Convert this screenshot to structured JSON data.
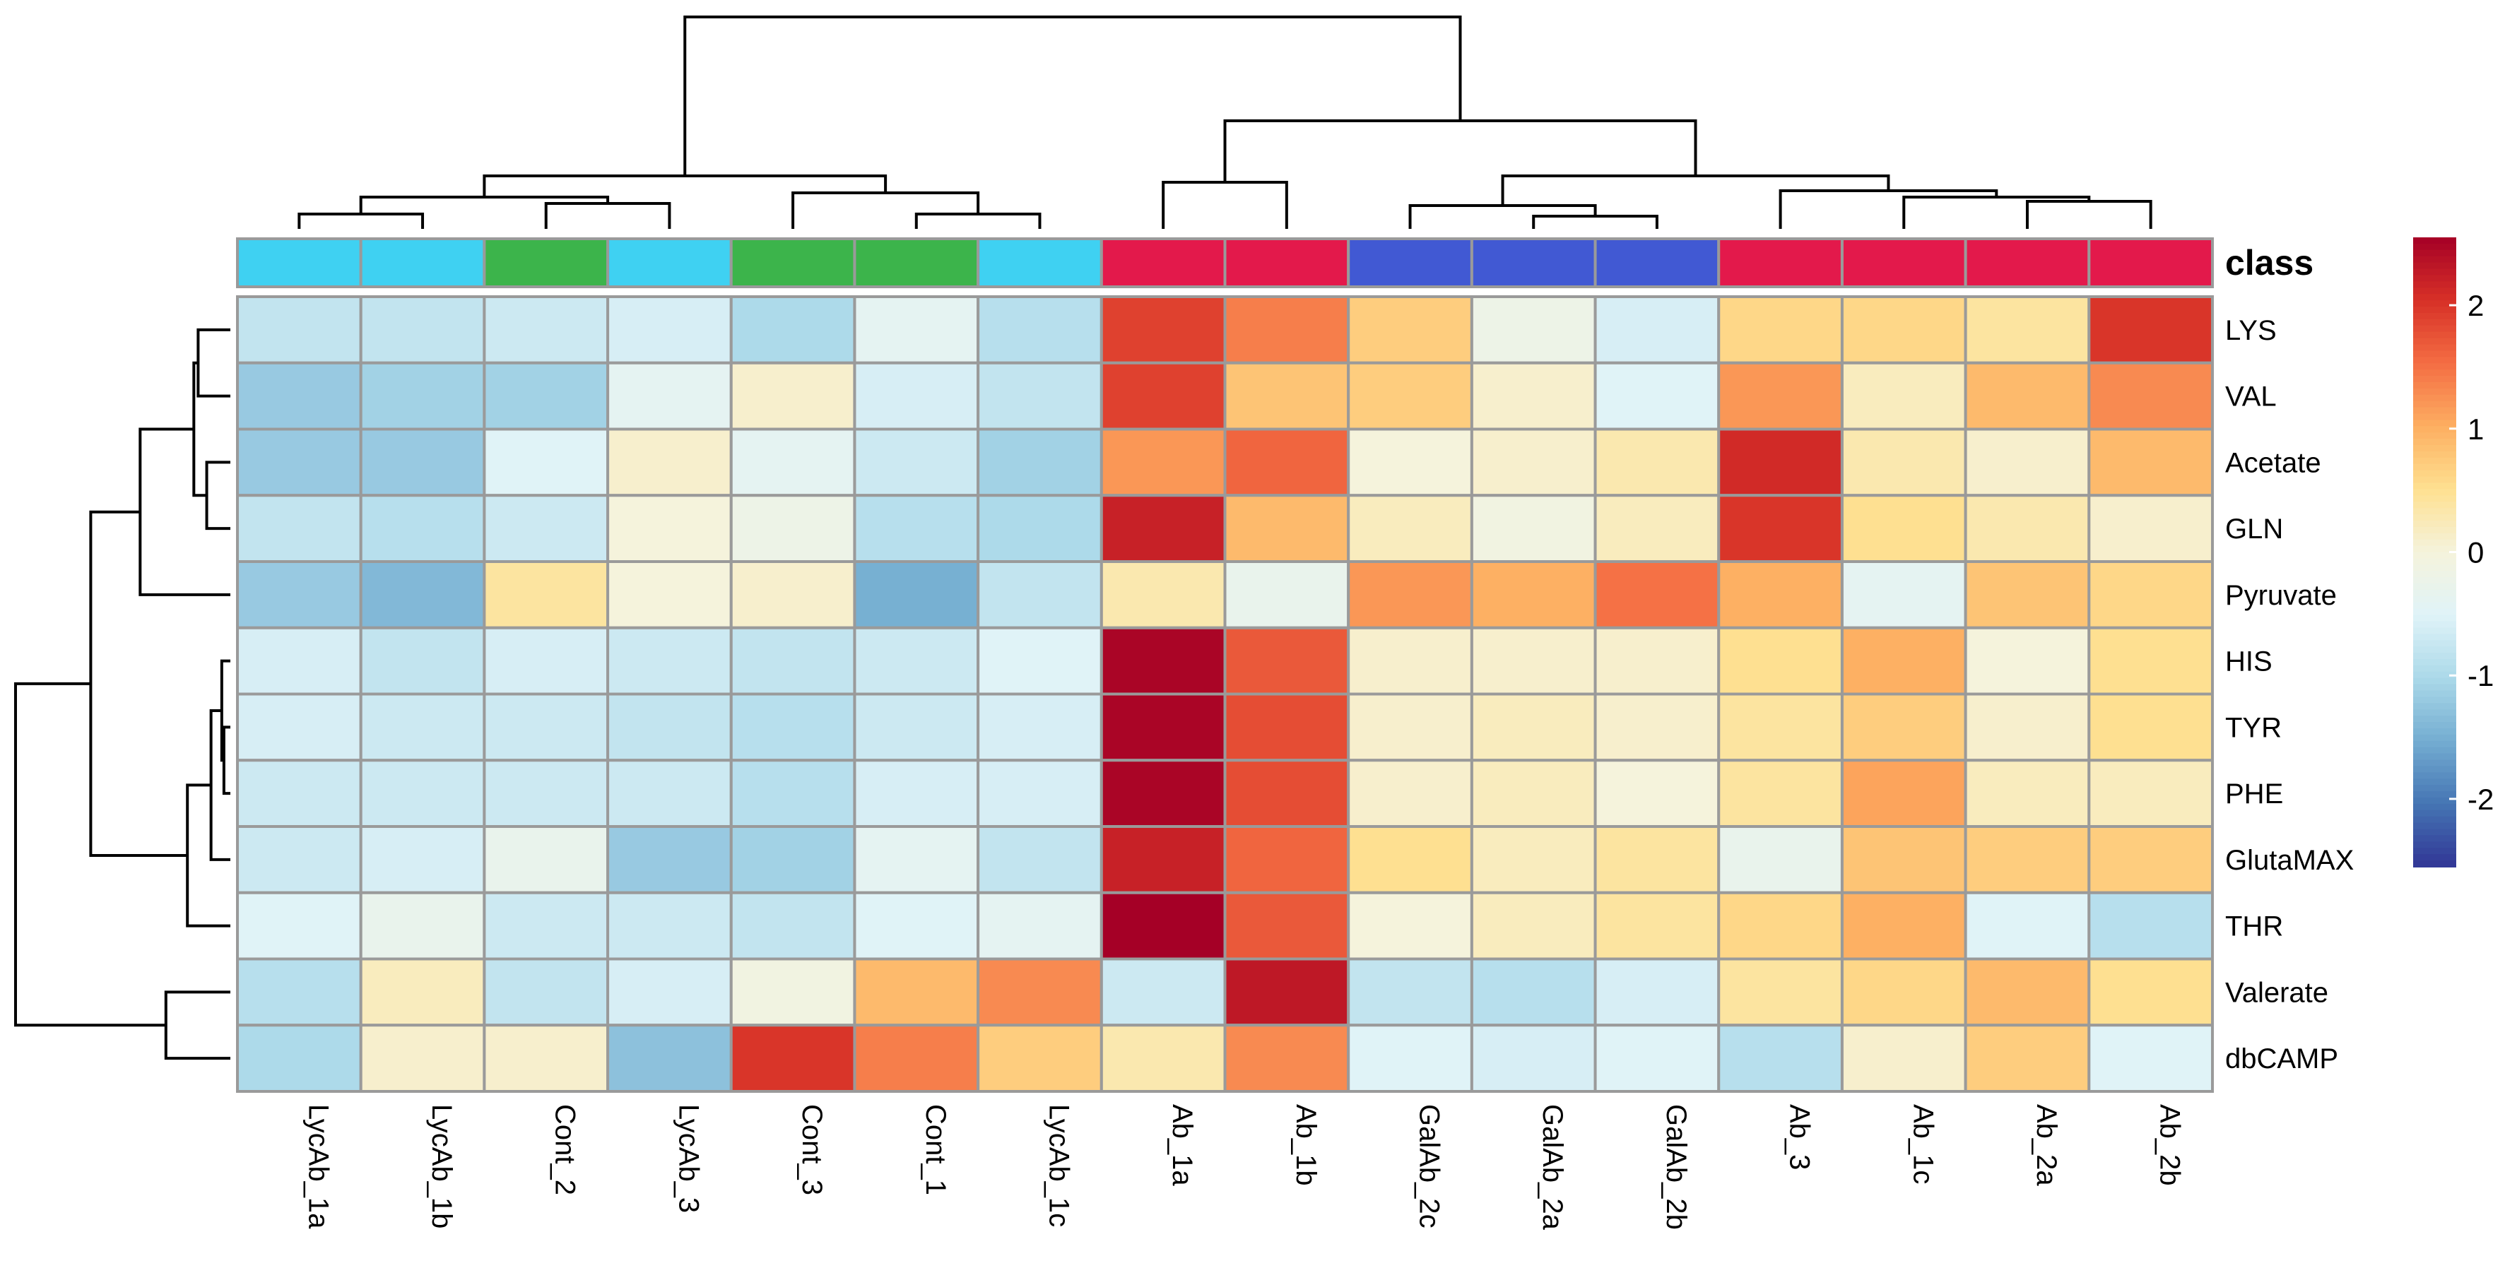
{
  "chart_data": {
    "type": "heatmap",
    "title": "",
    "columns": [
      "LycAb_1a",
      "LycAb_1b",
      "Cont_2",
      "LycAb_3",
      "Cont_3",
      "Cont_1",
      "LycAb_1c",
      "Ab_1a",
      "Ab_1b",
      "GalAb_2c",
      "GalAb_2a",
      "GalAb_2b",
      "Ab_3",
      "Ab_1c",
      "Ab_2a",
      "Ab_2b"
    ],
    "rows": [
      "LYS",
      "VAL",
      "Acetate",
      "GLN",
      "Pyruvate",
      "HIS",
      "TYR",
      "PHE",
      "GlutaMAX",
      "THR",
      "Valerate",
      "dbCAMP"
    ],
    "values": [
      [
        -0.8,
        -0.8,
        -0.7,
        -0.6,
        -1.0,
        -0.4,
        -0.9,
        1.9,
        1.4,
        0.7,
        -0.2,
        -0.6,
        0.6,
        0.6,
        0.4,
        2.0
      ],
      [
        -1.2,
        -1.1,
        -1.1,
        -0.4,
        0.1,
        -0.6,
        -0.8,
        1.9,
        0.8,
        0.7,
        0.1,
        -0.5,
        1.2,
        0.2,
        0.9,
        1.3
      ],
      [
        -1.2,
        -1.2,
        -0.5,
        0.1,
        -0.4,
        -0.7,
        -1.1,
        1.2,
        1.6,
        0.0,
        0.1,
        0.3,
        2.1,
        0.3,
        0.1,
        0.9
      ],
      [
        -0.8,
        -0.9,
        -0.7,
        0.0,
        -0.2,
        -0.9,
        -1.0,
        2.2,
        0.9,
        0.2,
        -0.1,
        0.2,
        2.0,
        0.5,
        0.3,
        0.1
      ],
      [
        -1.2,
        -1.4,
        0.4,
        0.0,
        0.1,
        -1.5,
        -0.8,
        0.3,
        -0.3,
        1.2,
        1.0,
        1.5,
        1.0,
        -0.4,
        0.8,
        0.6
      ],
      [
        -0.6,
        -0.8,
        -0.6,
        -0.7,
        -0.8,
        -0.7,
        -0.5,
        2.5,
        1.7,
        0.1,
        0.1,
        0.1,
        0.5,
        1.0,
        0.0,
        0.5
      ],
      [
        -0.6,
        -0.7,
        -0.7,
        -0.8,
        -0.9,
        -0.7,
        -0.6,
        2.5,
        1.8,
        0.1,
        0.2,
        0.1,
        0.4,
        0.7,
        0.1,
        0.5
      ],
      [
        -0.7,
        -0.7,
        -0.7,
        -0.7,
        -0.9,
        -0.6,
        -0.6,
        2.5,
        1.8,
        0.1,
        0.2,
        0.0,
        0.4,
        1.1,
        0.2,
        0.2
      ],
      [
        -0.7,
        -0.6,
        -0.3,
        -1.2,
        -1.1,
        -0.4,
        -0.8,
        2.2,
        1.6,
        0.5,
        0.2,
        0.4,
        -0.3,
        0.8,
        0.7,
        0.7
      ],
      [
        -0.5,
        -0.3,
        -0.7,
        -0.7,
        -0.8,
        -0.5,
        -0.4,
        2.6,
        1.7,
        0.0,
        0.2,
        0.4,
        0.6,
        1.0,
        -0.5,
        -0.9
      ],
      [
        -0.9,
        0.2,
        -0.8,
        -0.6,
        -0.1,
        0.9,
        1.3,
        -0.7,
        2.3,
        -0.8,
        -0.9,
        -0.6,
        0.4,
        0.6,
        0.9,
        0.5
      ],
      [
        -1.0,
        0.1,
        0.1,
        -1.3,
        2.0,
        1.4,
        0.7,
        0.3,
        1.3,
        -0.5,
        -0.6,
        -0.5,
        -0.9,
        0.1,
        0.7,
        -0.5
      ]
    ],
    "annotation": {
      "label": "class",
      "values": [
        "Lyc",
        "Lyc",
        "Cont",
        "Lyc",
        "Cont",
        "Cont",
        "Lyc",
        "Ab",
        "Ab",
        "GalAb",
        "GalAb",
        "GalAb",
        "Ab",
        "Ab",
        "Ab",
        "Ab"
      ],
      "colors": {
        "Lyc": "#3fd1f2",
        "Cont": "#3cb44b",
        "Ab": "#e3194b",
        "GalAb": "#4159d3"
      }
    },
    "col_dendrogram": [
      [
        0,
        1,
        0.7
      ],
      [
        2,
        3,
        1.2
      ],
      [
        16,
        17,
        1.5
      ],
      [
        5,
        6,
        0.7
      ],
      [
        4,
        19,
        1.7
      ],
      [
        18,
        20,
        2.5
      ],
      [
        7,
        8,
        2.2
      ],
      [
        10,
        11,
        0.6
      ],
      [
        9,
        23,
        1.1
      ],
      [
        14,
        15,
        1.3
      ],
      [
        13,
        25,
        1.5
      ],
      [
        12,
        26,
        1.8
      ],
      [
        24,
        27,
        2.5
      ],
      [
        22,
        28,
        5.1
      ],
      [
        21,
        29,
        10
      ]
    ],
    "row_dendrogram": [
      [
        0,
        1,
        1.5
      ],
      [
        2,
        3,
        1.1
      ],
      [
        12,
        13,
        1.7
      ],
      [
        14,
        4,
        4.2
      ],
      [
        6,
        7,
        0.3
      ],
      [
        5,
        16,
        0.4
      ],
      [
        17,
        8,
        0.9
      ],
      [
        18,
        9,
        2.0
      ],
      [
        15,
        19,
        6.5
      ],
      [
        10,
        11,
        3.0
      ],
      [
        20,
        21,
        10
      ]
    ],
    "color_scale": {
      "range": [
        -2.55,
        2.55
      ],
      "stops": [
        "#313695",
        "#4575b4",
        "#74add1",
        "#abd9e9",
        "#e0f3f8",
        "#f5f3dc",
        "#fee090",
        "#fdae61",
        "#f46d43",
        "#d73027",
        "#a50026"
      ],
      "ticks": [
        2,
        1,
        0,
        -1,
        -2
      ],
      "tick_labels": [
        "2",
        "1",
        "0",
        "-1",
        "-2"
      ]
    },
    "border_color": "#9a9a9a"
  }
}
